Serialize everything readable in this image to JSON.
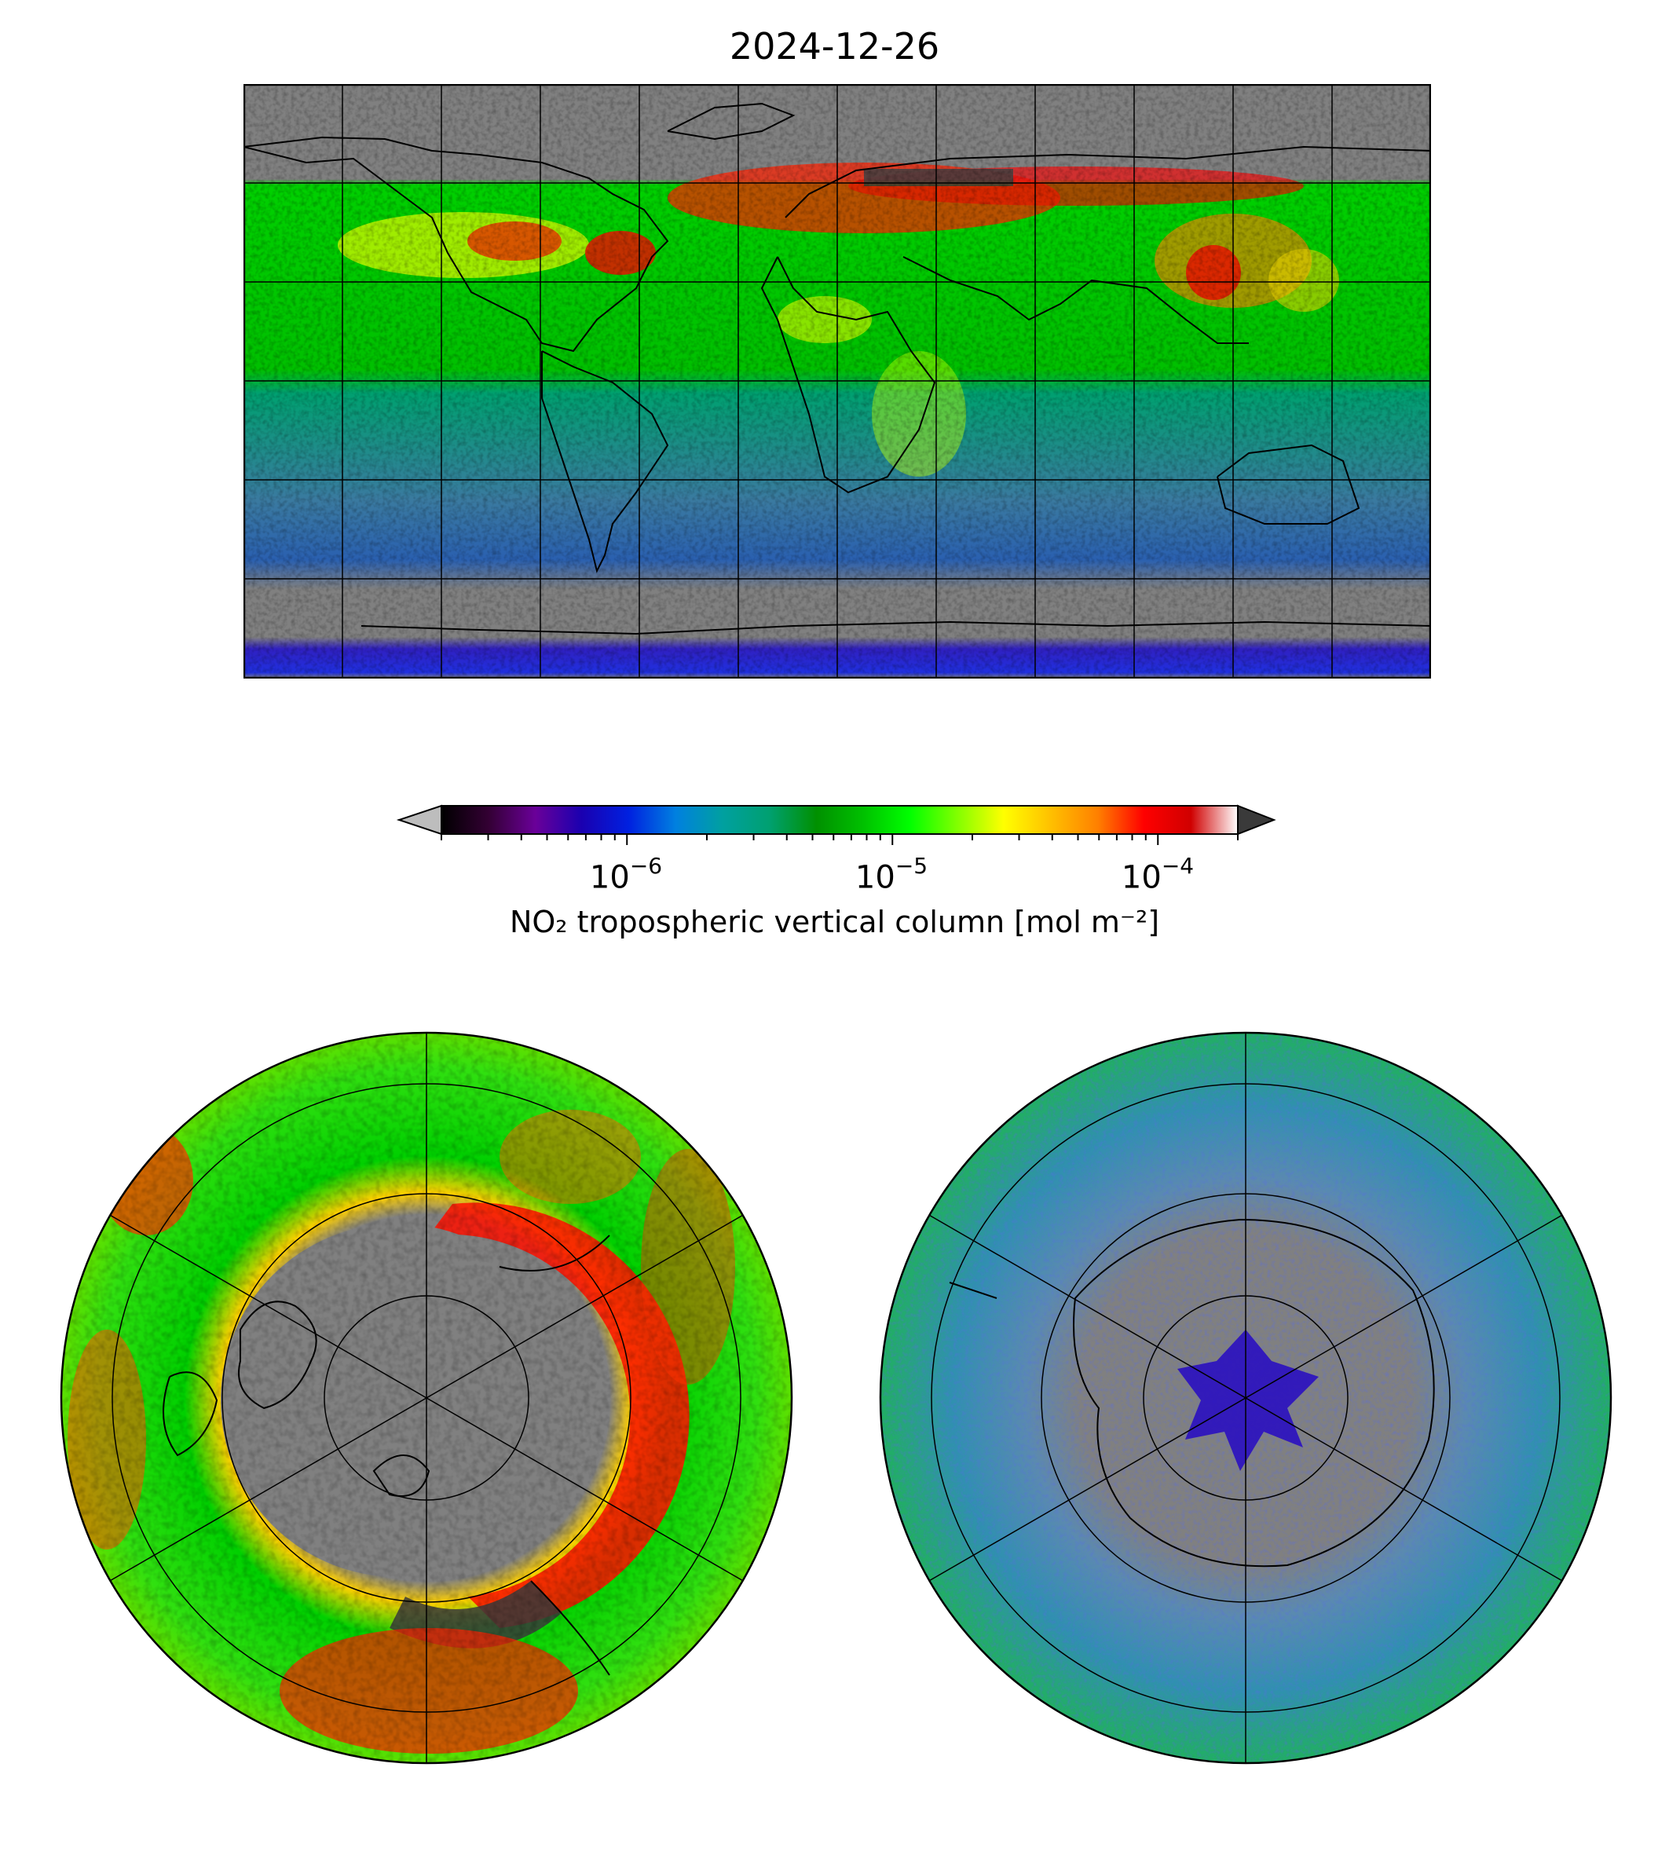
{
  "title": "2024-12-26",
  "colorbar": {
    "label": "NO₂ tropospheric vertical column [mol m⁻²]",
    "scale": "log",
    "range": [
      2e-07,
      0.0002
    ],
    "extend": "both",
    "ticks": [
      {
        "value": 1e-06,
        "base": "10",
        "exp": "−6"
      },
      {
        "value": 1e-05,
        "base": "10",
        "exp": "−5"
      },
      {
        "value": 0.0001,
        "base": "10",
        "exp": "−4"
      }
    ],
    "colors": [
      "#000000",
      "#330033",
      "#6a0099",
      "#1a00b0",
      "#0020e0",
      "#0080e0",
      "#00a0a0",
      "#00a070",
      "#009000",
      "#00c000",
      "#00ff00",
      "#80ff00",
      "#ffff00",
      "#ffc000",
      "#ff8000",
      "#ff0000",
      "#d00000",
      "#ffffff"
    ],
    "under_color": "#bdbdbd",
    "over_color": "#3a3a3a"
  },
  "maps": {
    "world": {
      "projection": "plate-carree",
      "no_data_color": "#808080"
    },
    "north": {
      "projection": "north-polar-stereographic",
      "no_data_color": "#808080"
    },
    "south": {
      "projection": "south-polar-stereographic",
      "no_data_color": "#808080"
    }
  }
}
